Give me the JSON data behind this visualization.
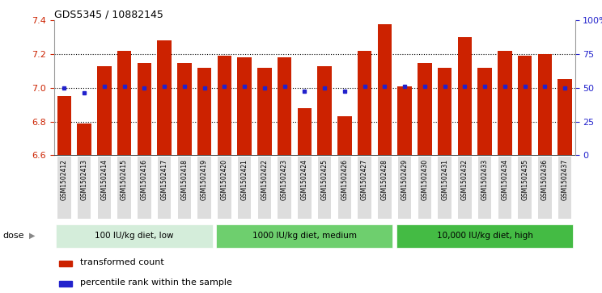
{
  "title": "GDS5345 / 10882145",
  "samples": [
    "GSM1502412",
    "GSM1502413",
    "GSM1502414",
    "GSM1502415",
    "GSM1502416",
    "GSM1502417",
    "GSM1502418",
    "GSM1502419",
    "GSM1502420",
    "GSM1502421",
    "GSM1502422",
    "GSM1502423",
    "GSM1502424",
    "GSM1502425",
    "GSM1502426",
    "GSM1502427",
    "GSM1502428",
    "GSM1502429",
    "GSM1502430",
    "GSM1502431",
    "GSM1502432",
    "GSM1502433",
    "GSM1502434",
    "GSM1502435",
    "GSM1502436",
    "GSM1502437"
  ],
  "bar_values": [
    6.95,
    6.79,
    7.13,
    7.22,
    7.15,
    7.28,
    7.15,
    7.12,
    7.19,
    7.18,
    7.12,
    7.18,
    6.88,
    7.13,
    6.83,
    7.22,
    7.38,
    7.01,
    7.15,
    7.12,
    7.3,
    7.12,
    7.22,
    7.19,
    7.2,
    7.05
  ],
  "percentile_values": [
    7.0,
    6.97,
    7.01,
    7.01,
    7.0,
    7.01,
    7.01,
    7.0,
    7.01,
    7.01,
    7.0,
    7.01,
    6.98,
    7.0,
    6.98,
    7.01,
    7.01,
    7.01,
    7.01,
    7.01,
    7.01,
    7.01,
    7.01,
    7.01,
    7.01,
    7.0
  ],
  "ylim": [
    6.6,
    7.4
  ],
  "yticks": [
    6.6,
    6.8,
    7.0,
    7.2,
    7.4
  ],
  "right_ytick_labels": [
    "0",
    "25",
    "50",
    "75",
    "100%"
  ],
  "right_ytick_positions": [
    6.6,
    6.8,
    7.0,
    7.2,
    7.4
  ],
  "bar_color": "#cc2200",
  "percentile_color": "#2222cc",
  "groups": [
    {
      "label": "100 IU/kg diet, low",
      "start": 0,
      "end": 8,
      "color": "#d4edda"
    },
    {
      "label": "1000 IU/kg diet, medium",
      "start": 8,
      "end": 17,
      "color": "#6ecf6e"
    },
    {
      "label": "10,000 IU/kg diet, high",
      "start": 17,
      "end": 26,
      "color": "#44bb44"
    }
  ],
  "legend_items": [
    {
      "label": "transformed count",
      "color": "#cc2200"
    },
    {
      "label": "percentile rank within the sample",
      "color": "#2222cc"
    }
  ],
  "background_color": "#ffffff",
  "xtick_bg": "#dddddd",
  "grid_color": "#000000",
  "axis_label_color_left": "#cc2200",
  "axis_label_color_right": "#2222cc",
  "bar_width": 0.7
}
